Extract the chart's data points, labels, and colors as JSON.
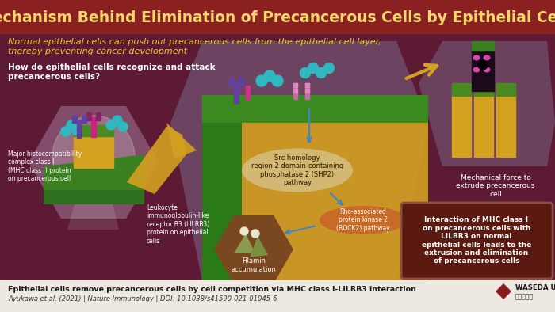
{
  "title": "Mechanism Behind Elimination of Precancerous Cells by Epithelial Cells",
  "subtitle": "Normal epithelial cells can push out precancerous cells from the epithelial cell layer,\nthereby preventing cancer development",
  "question": "How do epithelial cells recognize and attack\nprecancerous cells?",
  "bg_top": "#8B2020",
  "bg_main": "#5A1A3A",
  "title_color": "#F5D76E",
  "subtitle_color": "#F0C830",
  "question_color": "#FFFFFF",
  "footer_bg": "#EDE8E0",
  "footer_text1": "Epithelial cells remove precancerous cells by cell competition via MHC class I-LILRB3 interaction",
  "footer_text2": "Ayukawa et al. (2021) | Nature Immunology | DOI: 10.1038/s41590-021-01045-6",
  "label_mhc": "Major histocompatibility\ncomplex class I\n(MHC class I) protein\non precancerous cell",
  "label_lilrb3": "Leukocyte\nimmunoglobulin-like\nreceptor B3 (LILRB3)\nprotein on epithelial\ncells",
  "label_shp2": "Src homology\nregion 2 domain-containing\nphosphatase 2 (SHP2)\npathway",
  "label_rock2": "Rho-associated\nprotein kinase 2\n(ROCK2) pathway",
  "label_filamin": "Filamin\naccumulation",
  "label_mechanical": "Mechanical force to\nextrude precancerous\ncell",
  "label_interaction": "Interaction of MHC class I\non precancerous cells with\nLILBR3 on normal\nepithelial cells leads to the\nextrusion and elimination\nof precancerous cells"
}
